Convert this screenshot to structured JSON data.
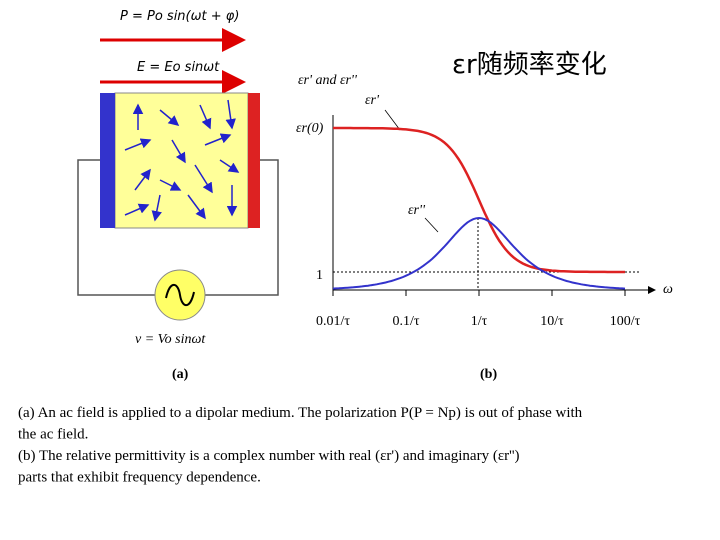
{
  "slide_title": "εr随频率变化",
  "diagram_a": {
    "polarization_label": "P = Po sin(ωt + φ)",
    "field_label": "E = Eo sinωt",
    "source_label": "v = Vo sinωt",
    "panel_label": "(a)"
  },
  "diagram_b": {
    "y_axis_label": "εr' and εr''",
    "x_axis_label": "ω",
    "real_label": "εr'",
    "imag_label": "εr''",
    "static_label": "εr(0)",
    "one_label": "1",
    "x_tick_labels": [
      "0.01/τ",
      "0.1/τ",
      "1/τ",
      "10/τ",
      "100/τ"
    ],
    "panel_label": "(b)"
  },
  "caption": [
    "(a) An ac field is applied to a dipolar medium. The polarization P(P = Np) is out of phase with",
    "the ac field.",
    "(b) The relative permittivity is a complex number with real (εr') and imaginary (εr'')",
    "parts that exhibit frequency dependence."
  ]
}
